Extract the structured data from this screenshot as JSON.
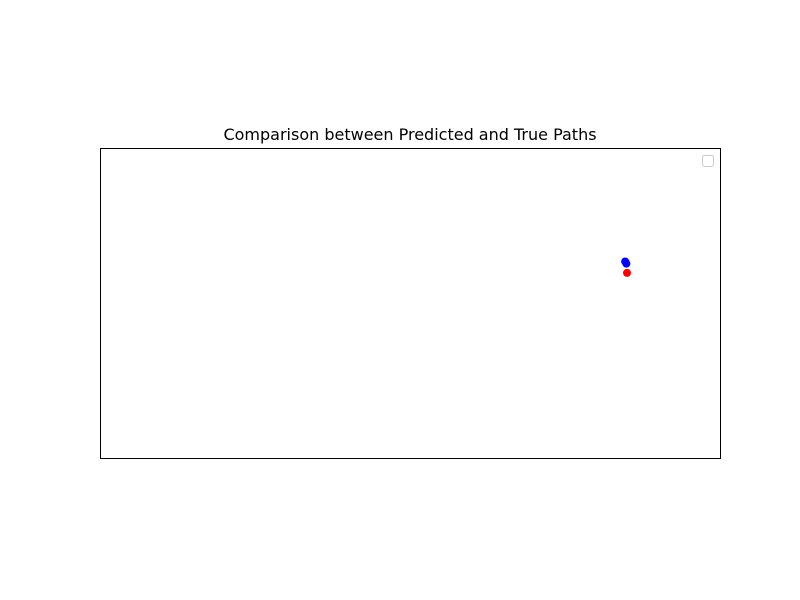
{
  "chart_data": {
    "type": "scatter",
    "title": "Comparison between Predicted and True Paths",
    "xlabel": "",
    "ylabel": "",
    "axes_visible": false,
    "grid": false,
    "legend": {
      "placement": "upper right",
      "entries": []
    },
    "xlim": [
      0,
      100
    ],
    "ylim": [
      0,
      100
    ],
    "series": [
      {
        "color": "#0000ff",
        "points": [
          {
            "x": 84.7,
            "y": 63.4
          },
          {
            "x": 84.9,
            "y": 62.7
          }
        ]
      },
      {
        "color": "#ff0000",
        "points": [
          {
            "x": 85.0,
            "y": 59.7
          }
        ]
      }
    ]
  }
}
